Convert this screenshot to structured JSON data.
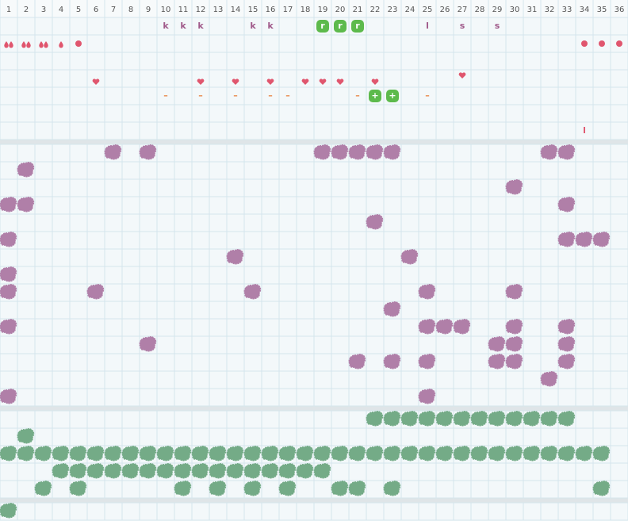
{
  "columns": [
    1,
    2,
    3,
    4,
    5,
    6,
    7,
    8,
    9,
    10,
    11,
    12,
    13,
    14,
    15,
    16,
    17,
    18,
    19,
    20,
    21,
    22,
    23,
    24,
    25,
    26,
    27,
    28,
    29,
    30,
    31,
    32,
    33,
    34,
    35,
    36
  ],
  "top_rows": [
    [
      null,
      null,
      null,
      null,
      null,
      null,
      null,
      null,
      null,
      "k",
      "k",
      "k",
      null,
      null,
      "k",
      "k",
      null,
      null,
      "r",
      "r",
      "r",
      null,
      null,
      null,
      "l",
      null,
      "s",
      null,
      "s",
      null,
      null,
      null,
      null,
      null,
      null,
      null
    ],
    [
      null,
      null,
      null,
      null,
      null,
      null,
      null,
      null,
      null,
      null,
      null,
      null,
      null,
      null,
      null,
      null,
      null,
      null,
      null,
      null,
      null,
      null,
      null,
      null,
      null,
      null,
      null,
      null,
      null,
      null,
      null,
      null,
      null,
      null,
      null,
      null
    ],
    [
      null,
      null,
      null,
      null,
      null,
      null,
      null,
      null,
      null,
      null,
      null,
      null,
      null,
      null,
      null,
      null,
      null,
      null,
      null,
      null,
      null,
      null,
      null,
      null,
      null,
      null,
      null,
      null,
      null,
      null,
      null,
      null,
      null,
      null,
      null,
      null
    ],
    [
      null,
      null,
      null,
      null,
      null,
      null,
      null,
      null,
      null,
      null,
      null,
      null,
      null,
      null,
      null,
      null,
      null,
      null,
      null,
      null,
      null,
      null,
      null,
      null,
      null,
      null,
      null,
      null,
      null,
      null,
      null,
      null,
      null,
      null,
      null,
      null
    ],
    [
      null,
      null,
      null,
      null,
      null,
      null,
      null,
      null,
      null,
      "–",
      null,
      "–",
      null,
      "–",
      null,
      "–",
      "–",
      null,
      null,
      null,
      "–",
      "+",
      "+",
      null,
      "–",
      null,
      null,
      null,
      null,
      null,
      null,
      null,
      null,
      null,
      null,
      null
    ],
    [
      null,
      null,
      null,
      null,
      null,
      null,
      null,
      null,
      null,
      null,
      null,
      null,
      null,
      null,
      null,
      null,
      null,
      null,
      null,
      null,
      null,
      null,
      null,
      null,
      null,
      null,
      null,
      null,
      null,
      null,
      null,
      null,
      null,
      null,
      null,
      null
    ],
    [
      null,
      null,
      null,
      null,
      null,
      null,
      null,
      null,
      null,
      null,
      null,
      null,
      null,
      null,
      null,
      null,
      null,
      null,
      null,
      null,
      null,
      null,
      null,
      null,
      null,
      null,
      null,
      null,
      null,
      null,
      null,
      null,
      null,
      "l",
      null,
      null
    ]
  ]
}
